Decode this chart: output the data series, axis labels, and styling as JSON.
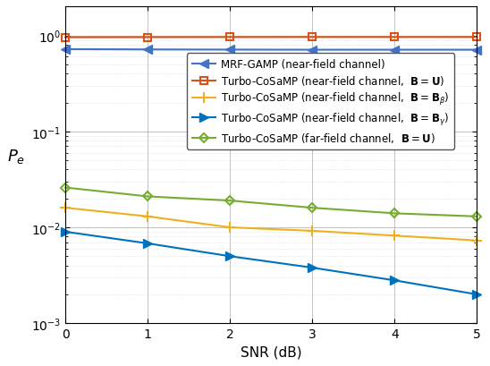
{
  "snr": [
    0,
    1,
    2,
    3,
    4,
    5
  ],
  "series": [
    {
      "label": "MRF-GAMP (near-field channel)",
      "color": "#4472C4",
      "marker": "<",
      "values": [
        0.72,
        0.715,
        0.712,
        0.71,
        0.71,
        0.71
      ],
      "linewidth": 1.5,
      "markersize": 7,
      "markerfacecolor": "#4472C4"
    },
    {
      "label": "Turbo-CoSaMP (near-field channel,  $\\mathbf{B} = \\mathbf{U}$)",
      "color": "#D95319",
      "marker": "s",
      "values": [
        0.958,
        0.96,
        0.962,
        0.963,
        0.963,
        0.963
      ],
      "linewidth": 1.5,
      "markersize": 6,
      "markerfacecolor": "none"
    },
    {
      "label": "Turbo-CoSaMP (near-field channel,  $\\mathbf{B} = \\mathbf{B}_{\\beta}$)",
      "color": "#EDB120",
      "marker": "+",
      "values": [
        0.016,
        0.013,
        0.01,
        0.0092,
        0.0082,
        0.0073
      ],
      "linewidth": 1.5,
      "markersize": 9,
      "markerfacecolor": "#EDB120"
    },
    {
      "label": "Turbo-CoSaMP (near-field channel,  $\\mathbf{B} = \\mathbf{B}_{\\gamma}$)",
      "color": "#0072BD",
      "marker": ">",
      "values": [
        0.009,
        0.0068,
        0.005,
        0.0038,
        0.0028,
        0.002
      ],
      "linewidth": 1.5,
      "markersize": 7,
      "markerfacecolor": "#0072BD"
    },
    {
      "label": "Turbo-CoSaMP (far-field channel,  $\\mathbf{B} = \\mathbf{U}$)",
      "color": "#77AC30",
      "marker": "D",
      "values": [
        0.026,
        0.021,
        0.019,
        0.016,
        0.014,
        0.013
      ],
      "linewidth": 1.5,
      "markersize": 5,
      "markerfacecolor": "none"
    }
  ],
  "xlabel": "SNR (dB)",
  "ylabel": "$P_e$",
  "ylim": [
    0.001,
    2.0
  ],
  "xlim": [
    0,
    5
  ],
  "yticks": [
    0.001,
    0.01,
    0.1,
    1.0
  ],
  "xticks": [
    0,
    1,
    2,
    3,
    4,
    5
  ],
  "legend_fontsize": 8.5,
  "axis_fontsize": 11,
  "tick_fontsize": 10
}
